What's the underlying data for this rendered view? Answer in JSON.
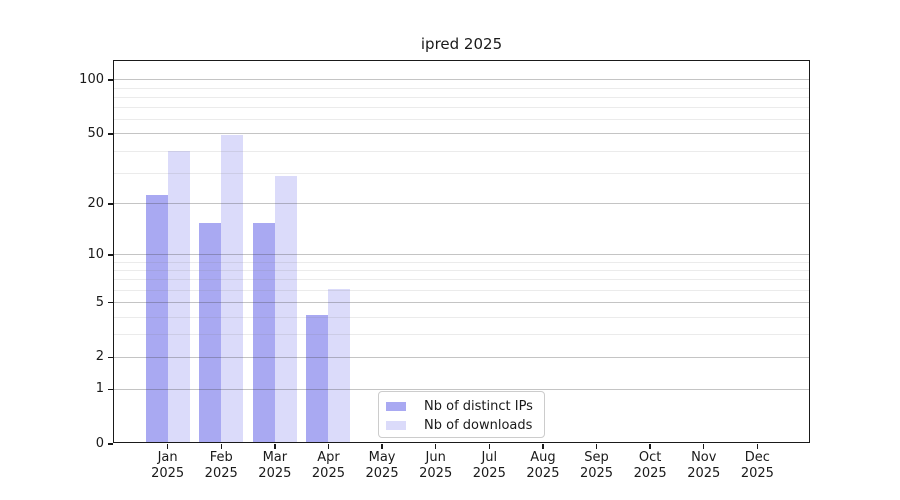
{
  "title": "ipred 2025",
  "chart_data": {
    "type": "bar",
    "title": "ipred 2025",
    "categories": [
      "Jan",
      "Feb",
      "Mar",
      "Apr",
      "May",
      "Jun",
      "Jul",
      "Aug",
      "Sep",
      "Oct",
      "Nov",
      "Dec"
    ],
    "year_label": "2025",
    "series": [
      {
        "name": "Nb of distinct IPs",
        "color": "#a9a9f2",
        "values": [
          22,
          15,
          15,
          4,
          0,
          0,
          0,
          0,
          0,
          0,
          0,
          0
        ]
      },
      {
        "name": "Nb of downloads",
        "color": "#dbdbfa",
        "values": [
          39,
          48,
          28,
          6,
          0,
          0,
          0,
          0,
          0,
          0,
          0,
          0
        ]
      }
    ],
    "xlabel": "",
    "ylabel": "",
    "y_scale": "log1p",
    "ylim": [
      0,
      127.5
    ],
    "y_major_ticks": [
      0,
      1,
      2,
      5,
      10,
      20,
      50,
      100
    ],
    "y_minor_ticks": [
      3,
      4,
      6,
      7,
      8,
      9,
      30,
      40,
      60,
      70,
      80,
      90
    ],
    "grid": true,
    "legend_position": "lower center"
  },
  "colors": {
    "major_grid": "#c4c4c4",
    "minor_grid": "#ebebeb",
    "spine": "#1a1a1a",
    "text": "#1a1a1a",
    "legend_border": "#cccccc",
    "background": "#ffffff"
  }
}
